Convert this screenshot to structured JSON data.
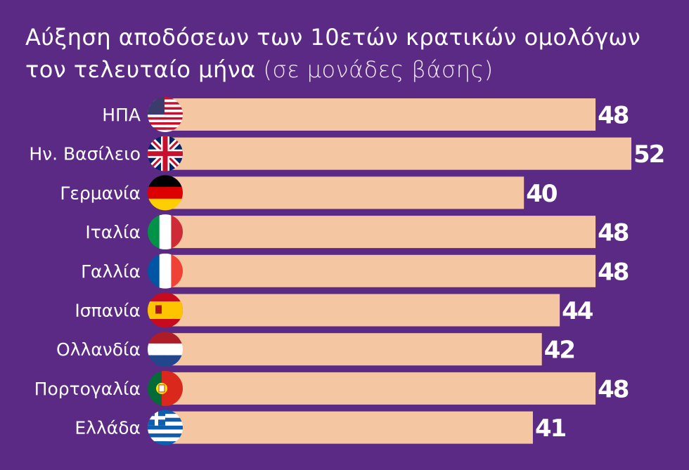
{
  "chart_data": {
    "type": "bar",
    "orientation": "horizontal",
    "title": "Αύξηση αποδόσεων των 10ετών κρατικών ομολόγων τον τελευταίο μήνα",
    "subtitle": "(σε μονάδες βάσης)",
    "categories": [
      "ΗΠΑ",
      "Ην. Βασίλειο",
      "Γερμανία",
      "Ιταλία",
      "Γαλλία",
      "Ισπανία",
      "Ολλανδία",
      "Πορτογαλία",
      "Ελλάδα"
    ],
    "values": [
      48,
      52,
      40,
      48,
      48,
      44,
      42,
      48,
      41
    ],
    "color": "#f4c6a2"
  }
}
